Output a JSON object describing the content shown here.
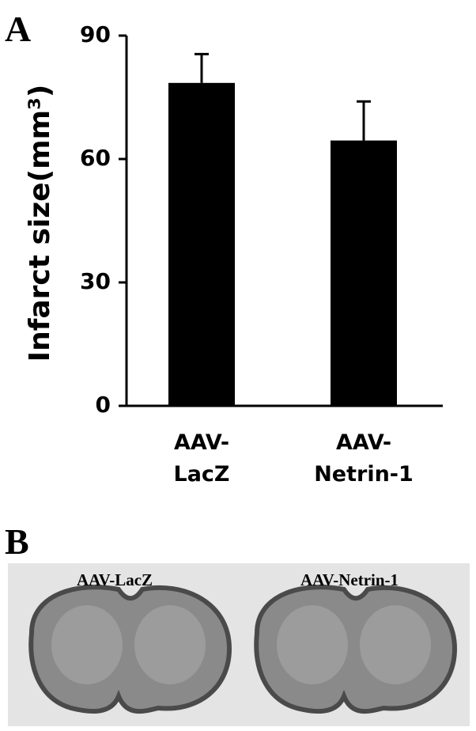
{
  "panel_a": "A",
  "panel_b": "B",
  "chart_data": {
    "type": "bar",
    "y_label": "Infarct size(mm³)",
    "categories": [
      "AAV-\nLacZ",
      "AAV-\nNetrin-1"
    ],
    "values": [
      78.5,
      64.5
    ],
    "errors": [
      7,
      9.5
    ],
    "color": "#000000",
    "ylim": [
      0,
      90
    ],
    "yticks": [
      0,
      30,
      60,
      90
    ]
  },
  "images": [
    {
      "label": "AAV-LacZ"
    },
    {
      "label": "AAV-Netrin-1"
    }
  ]
}
